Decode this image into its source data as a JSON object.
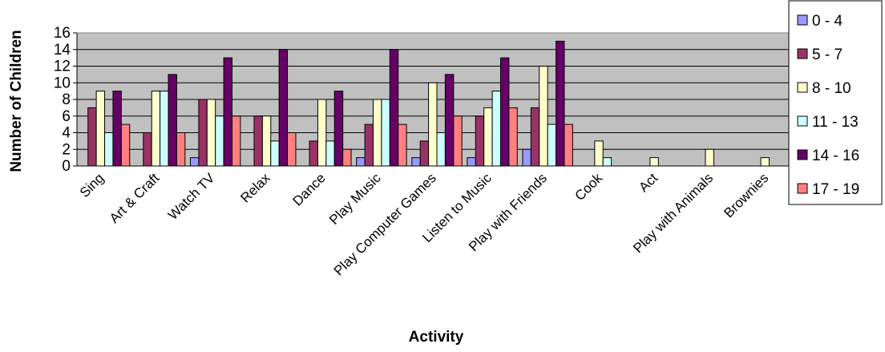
{
  "chart_data": {
    "type": "bar",
    "title": "",
    "xlabel": "Activity",
    "ylabel": "Number of Children",
    "ylim": [
      0,
      16
    ],
    "yticks": [
      0,
      2,
      4,
      6,
      8,
      10,
      12,
      14,
      16
    ],
    "grid": "horizontal",
    "legend_position": "right",
    "plot_background": "#c0c0c0",
    "categories": [
      "Sing",
      "Art & Craft",
      "Watch TV",
      "Relax",
      "Dance",
      "Play Music",
      "Play Computer Games",
      "Listen to Music",
      "Play with Friends",
      "Cook",
      "Act",
      "Play with Animals",
      "Brownies"
    ],
    "series": [
      {
        "name": "0 - 4",
        "color": "#9999ff",
        "values": [
          0,
          0,
          1,
          0,
          0,
          1,
          1,
          1,
          2,
          0,
          0,
          0,
          0
        ]
      },
      {
        "name": "5 - 7",
        "color": "#993366",
        "values": [
          7,
          4,
          8,
          6,
          3,
          5,
          3,
          6,
          7,
          0,
          0,
          0,
          0
        ]
      },
      {
        "name": "8 - 10",
        "color": "#ffffcc",
        "values": [
          9,
          9,
          8,
          6,
          8,
          8,
          10,
          7,
          12,
          3,
          1,
          2,
          1
        ]
      },
      {
        "name": "11 - 13",
        "color": "#ccffff",
        "values": [
          4,
          9,
          6,
          3,
          3,
          8,
          4,
          9,
          5,
          1,
          0,
          0,
          0
        ]
      },
      {
        "name": "14 - 16",
        "color": "#660066",
        "values": [
          9,
          11,
          13,
          14,
          9,
          14,
          11,
          13,
          15,
          0,
          0,
          0,
          0
        ]
      },
      {
        "name": "17 - 19",
        "color": "#ff8080",
        "values": [
          5,
          4,
          6,
          4,
          2,
          5,
          6,
          7,
          5,
          0,
          0,
          0,
          0
        ]
      }
    ]
  }
}
